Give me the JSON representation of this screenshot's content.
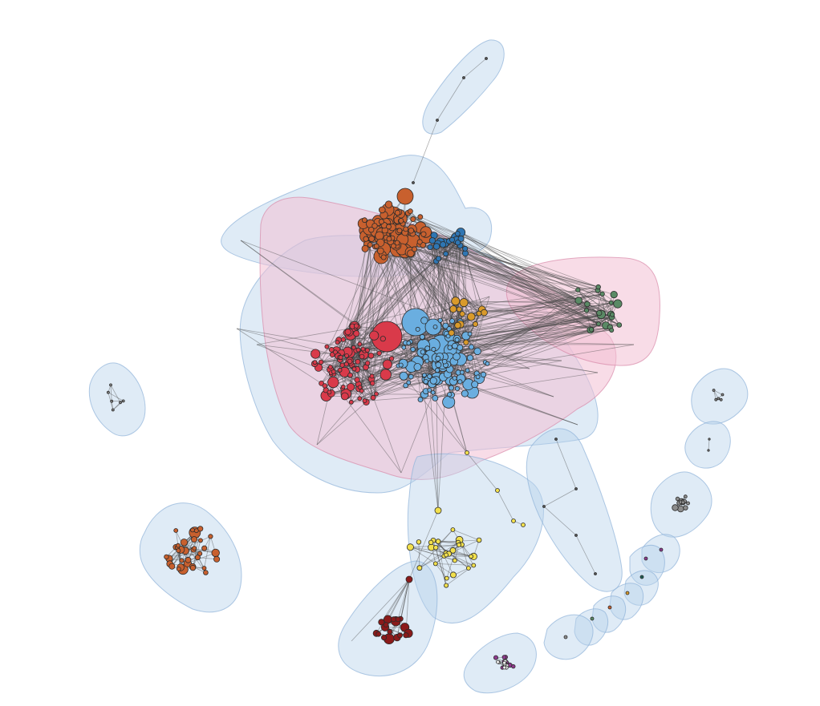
{
  "figure": {
    "type": "network-graph",
    "background": "#ffffff",
    "edge_color": "#4a4a4a",
    "hull_colors": {
      "blue": "#b9d3ec",
      "pink": "#f2bfd3"
    }
  },
  "communities": [
    {
      "id": "orange-top",
      "color": "#c8602e"
    },
    {
      "id": "dark-blue",
      "color": "#2f76b3"
    },
    {
      "id": "light-blue",
      "color": "#6aaee0"
    },
    {
      "id": "red",
      "color": "#d93a4a"
    },
    {
      "id": "green",
      "color": "#5a8a65"
    },
    {
      "id": "gold",
      "color": "#d99a2b"
    },
    {
      "id": "yellow",
      "color": "#f2e04c"
    },
    {
      "id": "dark-red",
      "color": "#8b1a1a"
    },
    {
      "id": "orange-left",
      "color": "#c8602e"
    },
    {
      "id": "gray",
      "color": "#8c8c8c"
    },
    {
      "id": "purple",
      "color": "#8e3a8e"
    },
    {
      "id": "teal",
      "color": "#1f5f55"
    },
    {
      "id": "white",
      "color": "#eeeeee"
    }
  ]
}
